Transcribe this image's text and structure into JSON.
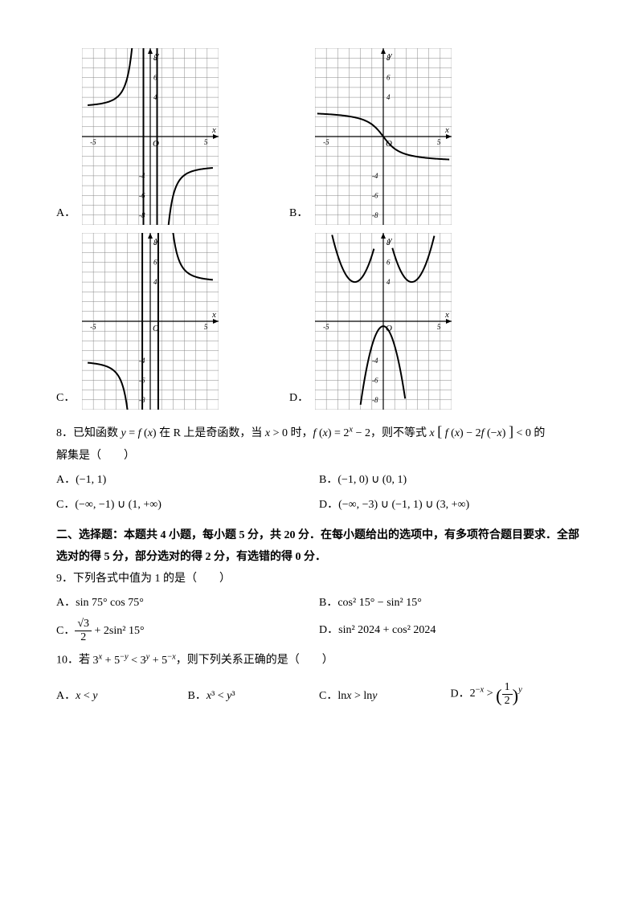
{
  "graphs": {
    "xlim": [
      -6,
      6
    ],
    "ylim": [
      -9,
      9
    ],
    "xticks": [
      -5,
      5
    ],
    "yticks": [
      -8,
      -6,
      -4,
      4,
      6,
      8
    ],
    "grid_color": "#888",
    "axis_color": "#000",
    "curve_color": "#000",
    "options": [
      {
        "label": "A．",
        "type": "A"
      },
      {
        "label": "B．",
        "type": "B"
      },
      {
        "label": "C．",
        "type": "C"
      },
      {
        "label": "D．",
        "type": "D"
      }
    ],
    "axis_x_label": "x",
    "axis_y_label": "y",
    "origin_label": "O"
  },
  "q8": {
    "stem_pre": "8．已知函数 ",
    "f1": "y = f (x)",
    "mid1": " 在 R 上是奇函数，当 ",
    "f2": "x > 0",
    "mid2": " 时，",
    "f3": "f (x) = 2ˣ − 2",
    "mid3": "，则不等式 ",
    "f4": "x [ f (x) − 2 f (−x) ] < 0",
    "mid4": " 的",
    "line2": "解集是（　　）",
    "opts": [
      {
        "label": "A．",
        "val": "(−1, 1)"
      },
      {
        "label": "B．",
        "val": "(−1, 0) ∪ (0, 1)"
      },
      {
        "label": "C．",
        "val": "(−∞, −1) ∪ (1, +∞)"
      },
      {
        "label": "D．",
        "val": "(−∞, −3) ∪ (−1, 1) ∪ (3, +∞)"
      }
    ]
  },
  "section2": "二、选择题：本题共 4 小题，每小题 5 分，共 20 分．在每小题给出的选项中，有多项符合题目要求．全部选对的得 5 分，部分选对的得 2 分，有选错的得 0 分．",
  "q9": {
    "stem": "9．下列各式中值为 1 的是（　　）",
    "opts": [
      {
        "label": "A．",
        "html": "sin 75° cos 75°"
      },
      {
        "label": "B．",
        "html": "cos² 15° − sin² 15°"
      },
      {
        "label": "C．",
        "html": "<span class='frac'><span class='n'>√3</span><span class='d'>2</span></span> + 2sin² 15°"
      },
      {
        "label": "D．",
        "html": "sin² 2024 + cos² 2024"
      }
    ]
  },
  "q10": {
    "stem_pre": "10．若 ",
    "f": "3ˣ + 5⁻ʸ < 3ʸ + 5⁻ˣ",
    "stem_post": "，则下列关系正确的是（　　）",
    "opts": [
      {
        "label": "A．",
        "html": "<i>x</i> &lt; <i>y</i>"
      },
      {
        "label": "B．",
        "html": "<i>x</i>³ &lt; <i>y</i>³"
      },
      {
        "label": "C．",
        "html": "ln<i>x</i> &gt; ln<i>y</i>"
      },
      {
        "label": "D．",
        "html": "2<sup>−<i>x</i></sup> &gt; <span class='frac' style='font-size:1.15em'><span class='n' style='font-size:0.85em'>&nbsp;</span><span class='d' style='font-size:0.85em'>&nbsp;</span></span>"
      }
    ],
    "optD_html": "2<sup>−<i>x</i></sup> &gt; <span style='font-size:1.6em;vertical-align:-0.3em'>(</span><span class='frac'><span class='n'>1</span><span class='d'>2</span></span><span style='font-size:1.6em;vertical-align:-0.3em'>)</span><sup><i>y</i></sup>"
  }
}
